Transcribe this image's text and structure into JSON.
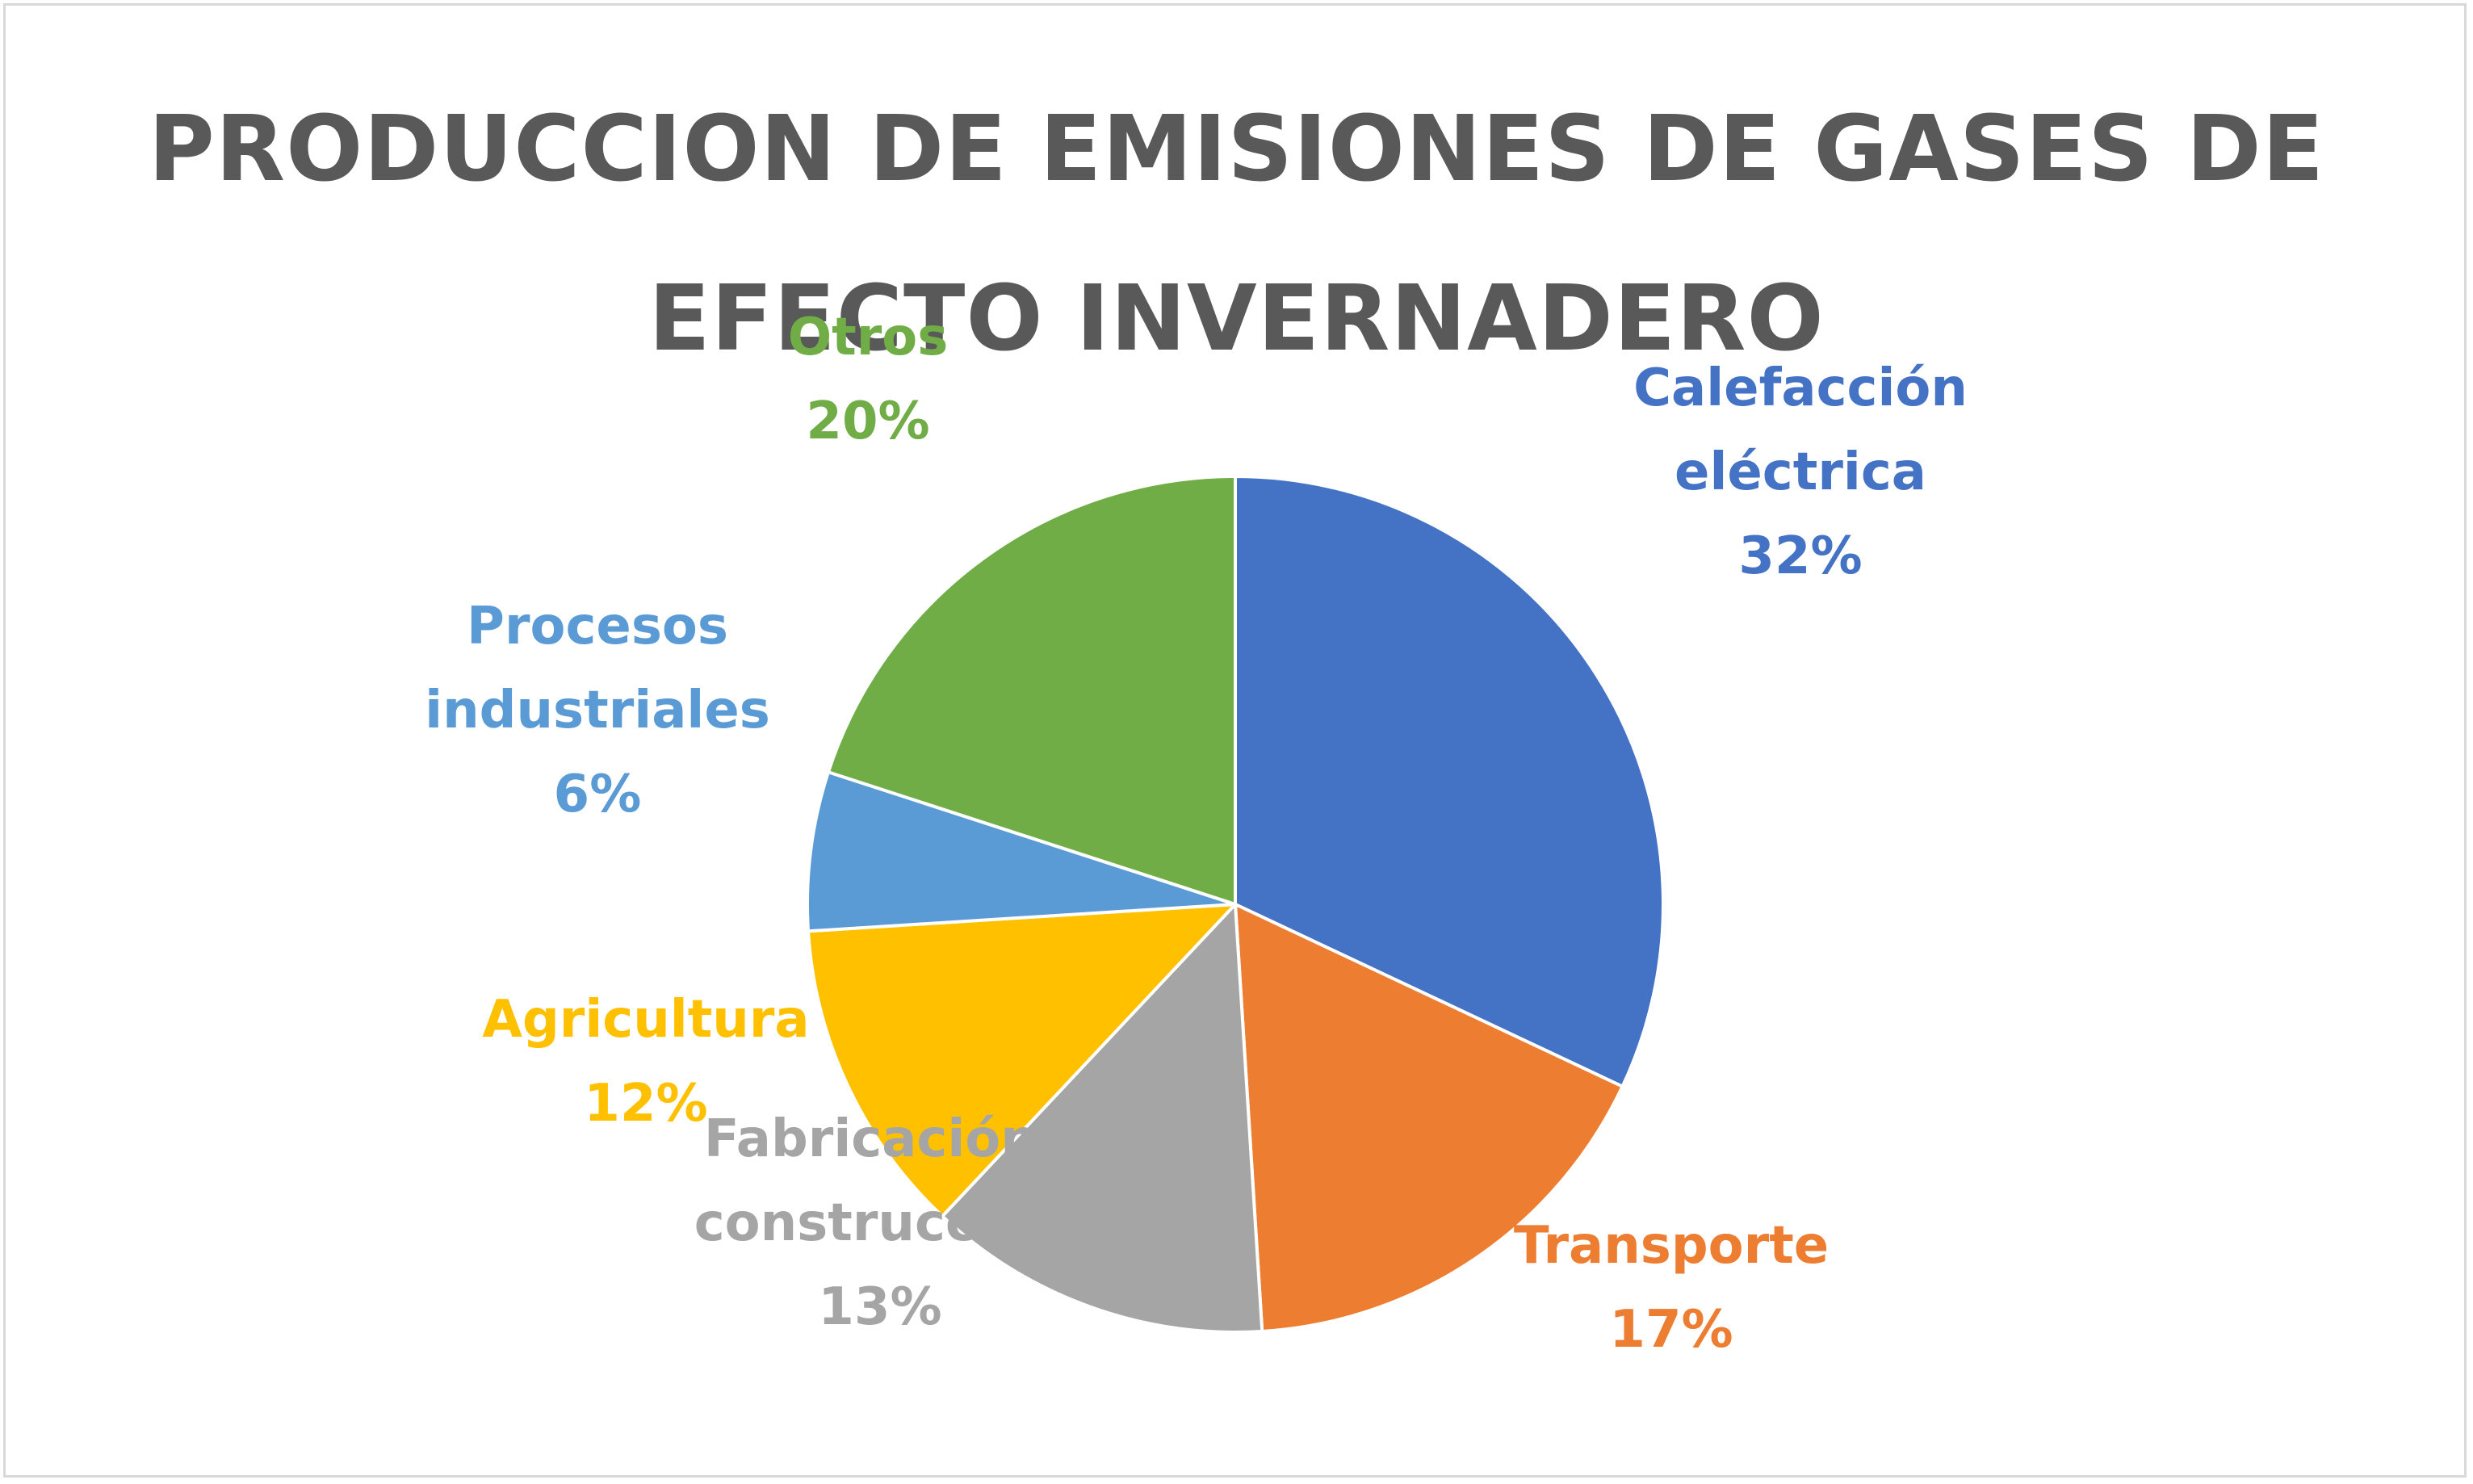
{
  "chart_data": {
    "type": "pie",
    "title_lines": [
      "PRODUCCION DE EMISIONES DE GASES DE",
      "EFECTO INVERNADERO"
    ],
    "slices": [
      {
        "label_lines": [
          "Calefacción",
          "eléctrica"
        ],
        "value": 32,
        "percent_label": "32%",
        "color": "#4472c4"
      },
      {
        "label_lines": [
          "Transporte"
        ],
        "value": 17,
        "percent_label": "17%",
        "color": "#ed7d31"
      },
      {
        "label_lines": [
          "Fabricación/",
          "construcción"
        ],
        "value": 13,
        "percent_label": "13%",
        "color": "#a5a5a5"
      },
      {
        "label_lines": [
          "Agricultura"
        ],
        "value": 12,
        "percent_label": "12%",
        "color": "#ffc000"
      },
      {
        "label_lines": [
          "Procesos",
          "industriales"
        ],
        "value": 6,
        "percent_label": "6%",
        "color": "#5b9bd5"
      },
      {
        "label_lines": [
          "Otros"
        ],
        "value": 20,
        "percent_label": "20%",
        "color": "#70ad47"
      }
    ],
    "start_angle": "12 o'clock",
    "direction": "clockwise",
    "legend": "none",
    "data_labels": "outside"
  }
}
